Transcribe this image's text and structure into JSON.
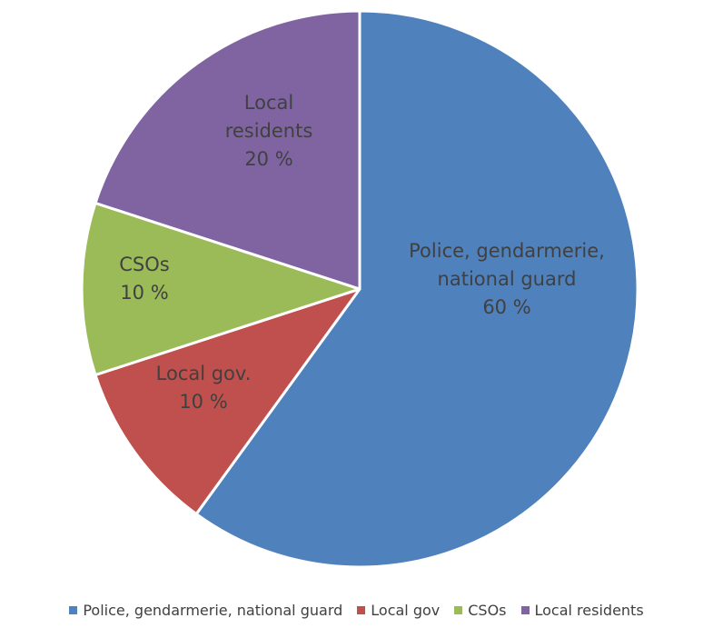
{
  "chart_data": {
    "type": "pie",
    "title": "",
    "legend_position": "bottom",
    "slices": [
      {
        "legend": "Police, gendarmerie, national guard",
        "label_lines": [
          "Police, gendarmerie,",
          "national guard"
        ],
        "value": 60,
        "value_label": "60 %",
        "color": "#4F81BD"
      },
      {
        "legend": "Local gov",
        "label_lines": [
          "Local gov."
        ],
        "value": 10,
        "value_label": "10 %",
        "color": "#C0504D"
      },
      {
        "legend": "CSOs",
        "label_lines": [
          "CSOs"
        ],
        "value": 10,
        "value_label": "10 %",
        "color": "#9BBB59"
      },
      {
        "legend": "Local residents",
        "label_lines": [
          "Local",
          "residents"
        ],
        "value": 20,
        "value_label": "20 %",
        "color": "#8064A2"
      }
    ]
  }
}
